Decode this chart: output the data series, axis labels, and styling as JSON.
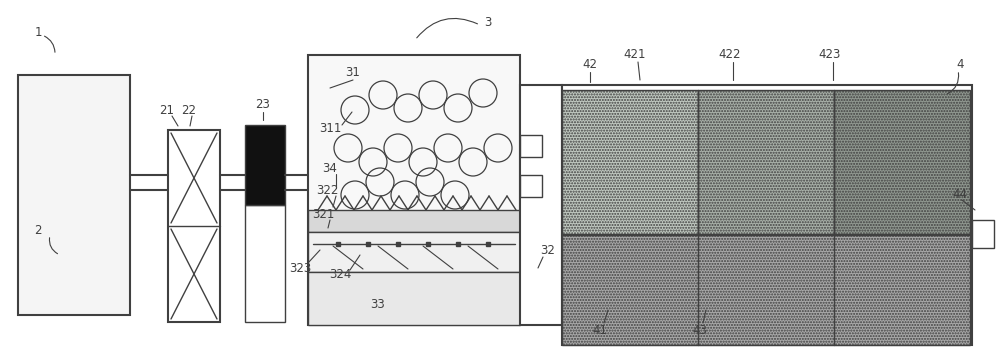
{
  "bg_color": "#ffffff",
  "line_color": "#404040",
  "lw": 1.0,
  "lw2": 1.5,
  "label_fontsize": 8.5
}
